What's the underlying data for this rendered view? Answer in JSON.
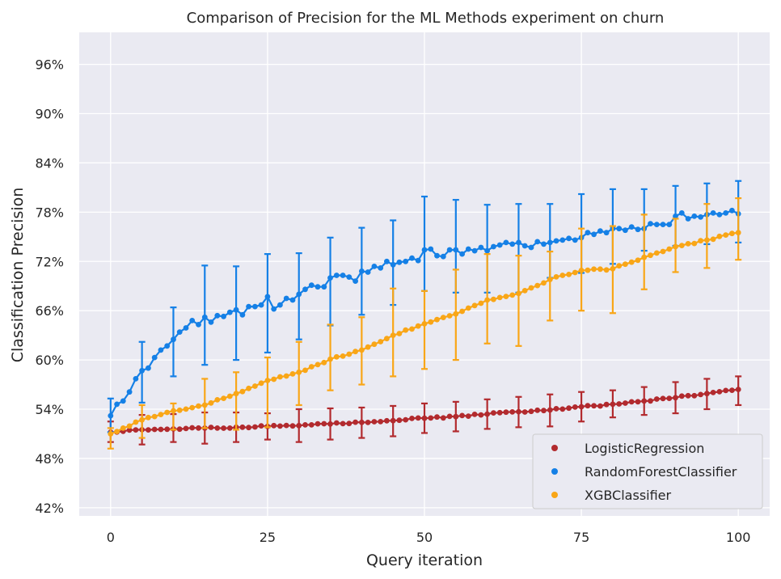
{
  "chart_data": {
    "type": "line",
    "title": "Comparison of Precision for the ML Methods experiment on churn",
    "xlabel": "Query iteration",
    "ylabel": "Classification Precision",
    "xlim": [
      -5,
      105
    ],
    "ylim": [
      0.41,
      0.999
    ],
    "xticks": [
      0,
      25,
      50,
      75,
      100
    ],
    "xtick_labels": [
      "0",
      "25",
      "50",
      "75",
      "100"
    ],
    "yticks": [
      0.42,
      0.48,
      0.54,
      0.6,
      0.66,
      0.72,
      0.78,
      0.84,
      0.9,
      0.96
    ],
    "ytick_labels": [
      "42%",
      "48%",
      "54%",
      "60%",
      "66%",
      "72%",
      "78%",
      "84%",
      "90%",
      "96%"
    ],
    "grid": true,
    "background": "#eaeaf2",
    "legend_position": "bottom-right",
    "errorbar_every": 5,
    "series": [
      {
        "name": "LogisticRegression",
        "color": "#b22a2e",
        "anchor_x": [
          0,
          5,
          10,
          15,
          20,
          25,
          30,
          35,
          40,
          45,
          50,
          55,
          60,
          65,
          70,
          75,
          80,
          85,
          90,
          95,
          100
        ],
        "anchor_y": [
          0.512,
          0.515,
          0.516,
          0.517,
          0.518,
          0.519,
          0.52,
          0.522,
          0.524,
          0.526,
          0.529,
          0.531,
          0.534,
          0.537,
          0.539,
          0.543,
          0.546,
          0.55,
          0.554,
          0.559,
          0.564
        ],
        "err_x": [
          0,
          5,
          10,
          15,
          20,
          25,
          30,
          35,
          40,
          45,
          50,
          55,
          60,
          65,
          70,
          75,
          80,
          85,
          90,
          95,
          100
        ],
        "err_low": [
          0.5,
          0.497,
          0.5,
          0.498,
          0.5,
          0.503,
          0.5,
          0.503,
          0.505,
          0.507,
          0.511,
          0.513,
          0.516,
          0.518,
          0.519,
          0.525,
          0.53,
          0.533,
          0.535,
          0.54,
          0.545
        ],
        "err_high": [
          0.525,
          0.533,
          0.534,
          0.536,
          0.536,
          0.535,
          0.54,
          0.541,
          0.542,
          0.544,
          0.547,
          0.549,
          0.552,
          0.555,
          0.558,
          0.561,
          0.563,
          0.567,
          0.573,
          0.577,
          0.58
        ]
      },
      {
        "name": "RandomForestClassifier",
        "color": "#1580e6",
        "anchor_x": [
          0,
          1,
          2,
          3,
          4,
          5,
          6,
          7,
          8,
          9,
          10,
          11,
          12,
          13,
          14,
          15,
          16,
          17,
          18,
          19,
          20,
          21,
          22,
          23,
          24,
          25,
          26,
          27,
          28,
          29,
          30,
          31,
          32,
          33,
          34,
          35,
          36,
          37,
          38,
          39,
          40,
          41,
          42,
          43,
          44,
          45,
          46,
          47,
          48,
          49,
          50,
          51,
          52,
          53,
          54,
          55,
          56,
          57,
          58,
          59,
          60,
          61,
          62,
          63,
          64,
          65,
          66,
          67,
          68,
          69,
          70,
          71,
          72,
          73,
          74,
          75,
          76,
          77,
          78,
          79,
          80,
          81,
          82,
          83,
          84,
          85,
          86,
          87,
          88,
          89,
          90,
          91,
          92,
          93,
          94,
          95,
          96,
          97,
          98,
          99,
          100
        ],
        "anchor_y": [
          0.532,
          0.546,
          0.55,
          0.561,
          0.577,
          0.587,
          0.59,
          0.603,
          0.612,
          0.617,
          0.625,
          0.634,
          0.639,
          0.648,
          0.643,
          0.652,
          0.646,
          0.654,
          0.653,
          0.658,
          0.661,
          0.655,
          0.665,
          0.665,
          0.667,
          0.677,
          0.662,
          0.667,
          0.675,
          0.673,
          0.68,
          0.686,
          0.691,
          0.689,
          0.689,
          0.7,
          0.703,
          0.703,
          0.701,
          0.696,
          0.708,
          0.707,
          0.714,
          0.712,
          0.72,
          0.716,
          0.719,
          0.72,
          0.724,
          0.721,
          0.734,
          0.735,
          0.727,
          0.726,
          0.734,
          0.734,
          0.729,
          0.735,
          0.733,
          0.737,
          0.733,
          0.738,
          0.74,
          0.743,
          0.741,
          0.743,
          0.739,
          0.737,
          0.744,
          0.741,
          0.743,
          0.745,
          0.746,
          0.748,
          0.746,
          0.749,
          0.755,
          0.753,
          0.757,
          0.755,
          0.76,
          0.76,
          0.758,
          0.762,
          0.759,
          0.76,
          0.766,
          0.765,
          0.765,
          0.765,
          0.775,
          0.779,
          0.772,
          0.775,
          0.774,
          0.777,
          0.779,
          0.777,
          0.779,
          0.782,
          0.778
        ],
        "err_x": [
          0,
          5,
          10,
          15,
          20,
          25,
          30,
          35,
          40,
          45,
          50,
          55,
          60,
          65,
          70,
          75,
          80,
          85,
          90,
          95,
          100
        ],
        "err_low": [
          0.512,
          0.548,
          0.58,
          0.594,
          0.6,
          0.609,
          0.625,
          0.642,
          0.655,
          0.667,
          0.684,
          0.682,
          0.682,
          0.682,
          0.7,
          0.706,
          0.717,
          0.733,
          0.739,
          0.741,
          0.743
        ],
        "err_high": [
          0.553,
          0.622,
          0.664,
          0.715,
          0.714,
          0.729,
          0.73,
          0.749,
          0.761,
          0.77,
          0.799,
          0.795,
          0.789,
          0.79,
          0.79,
          0.802,
          0.808,
          0.808,
          0.812,
          0.815,
          0.818
        ]
      },
      {
        "name": "XGBClassifier",
        "color": "#f9a617",
        "anchor_x": [
          0,
          5,
          10,
          15,
          20,
          25,
          30,
          35,
          40,
          45,
          50,
          55,
          60,
          65,
          70,
          75,
          80,
          85,
          90,
          95,
          100
        ],
        "anchor_y": [
          0.51,
          0.527,
          0.538,
          0.545,
          0.559,
          0.575,
          0.585,
          0.601,
          0.612,
          0.63,
          0.644,
          0.656,
          0.673,
          0.681,
          0.698,
          0.709,
          0.711,
          0.725,
          0.738,
          0.746,
          0.755
        ],
        "err_x": [
          0,
          5,
          10,
          15,
          20,
          25,
          30,
          35,
          40,
          45,
          50,
          55,
          60,
          65,
          70,
          75,
          80,
          85,
          90,
          95,
          100
        ],
        "err_low": [
          0.492,
          0.505,
          0.515,
          0.517,
          0.515,
          0.518,
          0.545,
          0.563,
          0.57,
          0.58,
          0.589,
          0.6,
          0.62,
          0.617,
          0.648,
          0.66,
          0.657,
          0.686,
          0.707,
          0.712,
          0.722
        ],
        "err_high": [
          0.517,
          0.545,
          0.547,
          0.577,
          0.585,
          0.603,
          0.622,
          0.643,
          0.652,
          0.687,
          0.684,
          0.71,
          0.729,
          0.727,
          0.732,
          0.76,
          0.763,
          0.777,
          0.772,
          0.79,
          0.797
        ]
      }
    ]
  }
}
